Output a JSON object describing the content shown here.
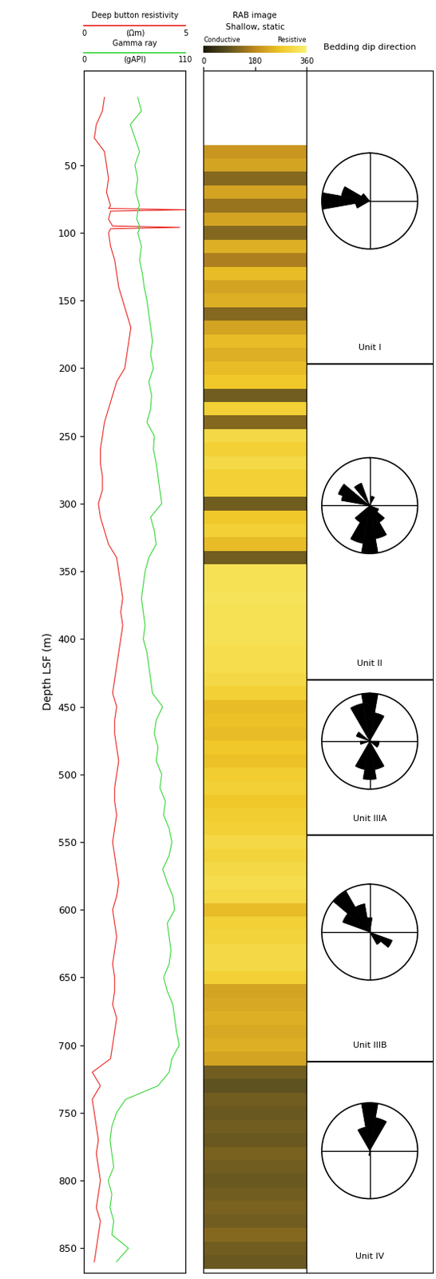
{
  "chart_data": {
    "type": "well_log",
    "ylabel": "Depth LSF (m)",
    "ylim": [
      868,
      -20
    ],
    "yticks": [
      50,
      100,
      150,
      200,
      250,
      300,
      350,
      400,
      450,
      500,
      550,
      600,
      650,
      700,
      750,
      800,
      850
    ],
    "tracks": [
      {
        "type": "curves",
        "series": [
          {
            "name": "Deep button resistivity",
            "unit": "(Ωm)",
            "color": "#e8231e",
            "xlim": [
              0,
              5
            ],
            "xticks": [
              0,
              5
            ],
            "depth": [
              0,
              10,
              20,
              30,
              40,
              50,
              60,
              70,
              80,
              82,
              83,
              84,
              90,
              95,
              96,
              97,
              100,
              110,
              120,
              130,
              140,
              150,
              160,
              170,
              180,
              190,
              200,
              210,
              220,
              230,
              240,
              250,
              260,
              270,
              280,
              290,
              300,
              310,
              320,
              330,
              340,
              350,
              360,
              370,
              380,
              390,
              400,
              410,
              420,
              430,
              440,
              450,
              460,
              470,
              480,
              490,
              500,
              510,
              520,
              530,
              540,
              550,
              560,
              570,
              580,
              590,
              600,
              610,
              620,
              630,
              640,
              650,
              660,
              670,
              680,
              690,
              700,
              710,
              720,
              730,
              740,
              750,
              760,
              770,
              780,
              790,
              800,
              810,
              820,
              830,
              840,
              850,
              860
            ],
            "values": [
              1.0,
              0.9,
              0.6,
              0.5,
              1.0,
              1.1,
              1.2,
              1.1,
              1.3,
              1.2,
              5.0,
              1.3,
              1.2,
              1.4,
              4.7,
              1.3,
              1.2,
              1.3,
              1.5,
              1.6,
              1.7,
              1.9,
              2.1,
              2.3,
              2.2,
              2.1,
              2.0,
              1.6,
              1.4,
              1.2,
              1.0,
              0.9,
              0.8,
              0.8,
              0.9,
              0.9,
              0.7,
              0.8,
              1.0,
              1.2,
              1.6,
              1.7,
              1.8,
              1.9,
              1.8,
              1.9,
              1.8,
              1.7,
              1.6,
              1.5,
              1.4,
              1.6,
              1.5,
              1.5,
              1.6,
              1.7,
              1.6,
              1.5,
              1.5,
              1.6,
              1.5,
              1.4,
              1.5,
              1.6,
              1.7,
              1.6,
              1.4,
              1.5,
              1.6,
              1.5,
              1.4,
              1.5,
              1.5,
              1.4,
              1.6,
              1.5,
              1.4,
              1.3,
              0.4,
              0.8,
              0.4,
              0.5,
              0.6,
              0.7,
              0.6,
              0.7,
              0.8,
              0.7,
              0.6,
              0.8,
              0.7,
              0.6,
              0.5
            ]
          },
          {
            "name": "Gamma ray",
            "unit": "(gAPI)",
            "color": "#33d633",
            "xlim": [
              0,
              110
            ],
            "xticks": [
              0,
              110
            ],
            "depth": [
              0,
              10,
              20,
              30,
              40,
              50,
              60,
              70,
              80,
              82,
              83,
              84,
              90,
              95,
              96,
              97,
              100,
              110,
              120,
              130,
              140,
              150,
              160,
              170,
              180,
              190,
              200,
              210,
              220,
              230,
              240,
              250,
              260,
              270,
              280,
              290,
              300,
              310,
              320,
              330,
              340,
              350,
              360,
              370,
              380,
              390,
              400,
              410,
              420,
              430,
              440,
              450,
              460,
              470,
              480,
              490,
              500,
              510,
              520,
              530,
              540,
              550,
              560,
              570,
              580,
              590,
              600,
              610,
              620,
              630,
              640,
              650,
              660,
              670,
              680,
              690,
              700,
              710,
              720,
              730,
              740,
              750,
              760,
              770,
              780,
              790,
              800,
              810,
              820,
              830,
              840,
              850,
              860
            ],
            "values": [
              58,
              62,
              50,
              55,
              60,
              55,
              58,
              56,
              60,
              58,
              60,
              58,
              57,
              60,
              58,
              60,
              58,
              62,
              60,
              63,
              65,
              68,
              70,
              72,
              74,
              72,
              75,
              70,
              73,
              72,
              68,
              76,
              75,
              78,
              80,
              82,
              84,
              72,
              76,
              78,
              70,
              66,
              64,
              62,
              64,
              66,
              64,
              68,
              70,
              72,
              74,
              85,
              78,
              76,
              80,
              78,
              84,
              82,
              88,
              86,
              92,
              95,
              92,
              85,
              90,
              96,
              98,
              90,
              92,
              94,
              92,
              86,
              90,
              96,
              98,
              100,
              103,
              95,
              92,
              80,
              45,
              35,
              30,
              28,
              30,
              32,
              26,
              30,
              28,
              32,
              30,
              48,
              35
            ]
          }
        ]
      },
      {
        "type": "image",
        "title": "RAB image",
        "subtitle": "Shallow, static",
        "scale_labels": [
          "Conductive",
          "Resistive"
        ],
        "vlim": [
          0,
          1
        ],
        "xlim": [
          0,
          360
        ],
        "xticks": [
          0,
          180,
          360
        ],
        "depth": [
          40,
          50,
          60,
          70,
          80,
          90,
          100,
          110,
          120,
          130,
          140,
          150,
          160,
          170,
          180,
          190,
          200,
          210,
          220,
          230,
          240,
          250,
          260,
          270,
          280,
          290,
          300,
          310,
          320,
          330,
          340,
          350,
          360,
          370,
          380,
          390,
          400,
          410,
          420,
          430,
          440,
          450,
          460,
          470,
          480,
          490,
          500,
          510,
          520,
          530,
          540,
          550,
          560,
          570,
          580,
          590,
          600,
          610,
          620,
          630,
          640,
          650,
          660,
          670,
          680,
          690,
          700,
          710,
          720,
          730,
          740,
          750,
          760,
          770,
          780,
          790,
          800,
          810,
          820,
          830,
          840,
          850,
          860
        ],
        "values": [
          0.55,
          0.6,
          0.35,
          0.6,
          0.4,
          0.6,
          0.35,
          0.65,
          0.45,
          0.7,
          0.6,
          0.65,
          0.35,
          0.6,
          0.7,
          0.65,
          0.7,
          0.75,
          0.3,
          0.8,
          0.35,
          0.85,
          0.8,
          0.85,
          0.8,
          0.8,
          0.3,
          0.75,
          0.8,
          0.7,
          0.3,
          0.9,
          0.9,
          0.92,
          0.9,
          0.9,
          0.9,
          0.88,
          0.88,
          0.85,
          0.8,
          0.7,
          0.72,
          0.7,
          0.75,
          0.72,
          0.78,
          0.8,
          0.75,
          0.78,
          0.8,
          0.85,
          0.82,
          0.85,
          0.88,
          0.85,
          0.7,
          0.8,
          0.82,
          0.85,
          0.85,
          0.8,
          0.6,
          0.62,
          0.65,
          0.62,
          0.65,
          0.6,
          0.3,
          0.25,
          0.3,
          0.28,
          0.3,
          0.28,
          0.32,
          0.3,
          0.28,
          0.3,
          0.32,
          0.3,
          0.35,
          0.3,
          0.28
        ]
      },
      {
        "type": "rose",
        "title": "Bedding dip direction",
        "boundaries": [
          197,
          430,
          545,
          712
        ],
        "units": [
          {
            "name": "Unit I",
            "directions": [
              250,
              270,
              290,
              310
            ],
            "counts": [
              3,
              10,
              6,
              2
            ]
          },
          {
            "name": "Unit II",
            "directions": [
              20,
              120,
              140,
              160,
              180,
              200,
              220,
              290,
              300,
              330
            ],
            "counts": [
              2,
              2,
              4,
              7,
              10,
              8,
              4,
              6,
              7,
              5
            ]
          },
          {
            "name": "Unit IIIA",
            "directions": [
              0,
              20,
              100,
              120,
              160,
              180,
              200,
              260,
              300,
              340
            ],
            "counts": [
              10,
              6,
              2,
              2,
              6,
              8,
              6,
              2,
              3,
              8
            ]
          },
          {
            "name": "Unit IIIB",
            "directions": [
              0,
              120,
              140,
              300,
              320,
              340
            ],
            "counts": [
              3,
              5,
              3,
              6,
              10,
              6
            ]
          },
          {
            "name": "Unit IV",
            "directions": [
              0,
              20,
              180,
              340
            ],
            "counts": [
              10,
              7,
              1,
              5
            ]
          }
        ]
      }
    ]
  }
}
